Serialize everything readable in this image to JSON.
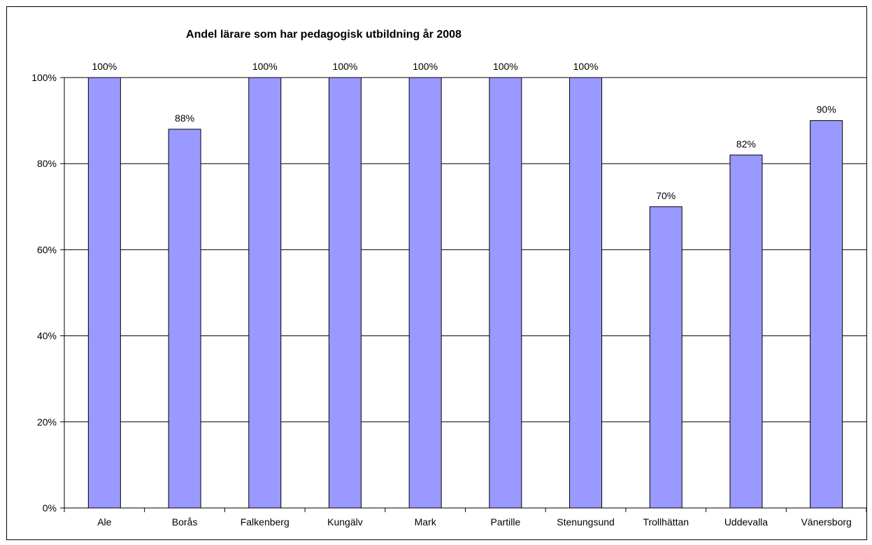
{
  "chart_data": {
    "type": "bar",
    "title": "Andel lärare som har pedagogisk utbildning år 2008",
    "categories": [
      "Ale",
      "Borås",
      "Falkenberg",
      "Kungälv",
      "Mark",
      "Partille",
      "Stenungsund",
      "Trollhättan",
      "Uddevalla",
      "Vänersborg"
    ],
    "values": [
      100,
      88,
      100,
      100,
      100,
      100,
      100,
      70,
      82,
      90
    ],
    "value_labels": [
      "100%",
      "88%",
      "100%",
      "100%",
      "100%",
      "100%",
      "100%",
      "70%",
      "82%",
      "90%"
    ],
    "y_ticks": [
      "0%",
      "20%",
      "40%",
      "60%",
      "80%",
      "100%"
    ],
    "ylim": [
      0,
      100
    ],
    "grid": true,
    "bar_color": "#9999ff",
    "xlabel": "",
    "ylabel": ""
  }
}
